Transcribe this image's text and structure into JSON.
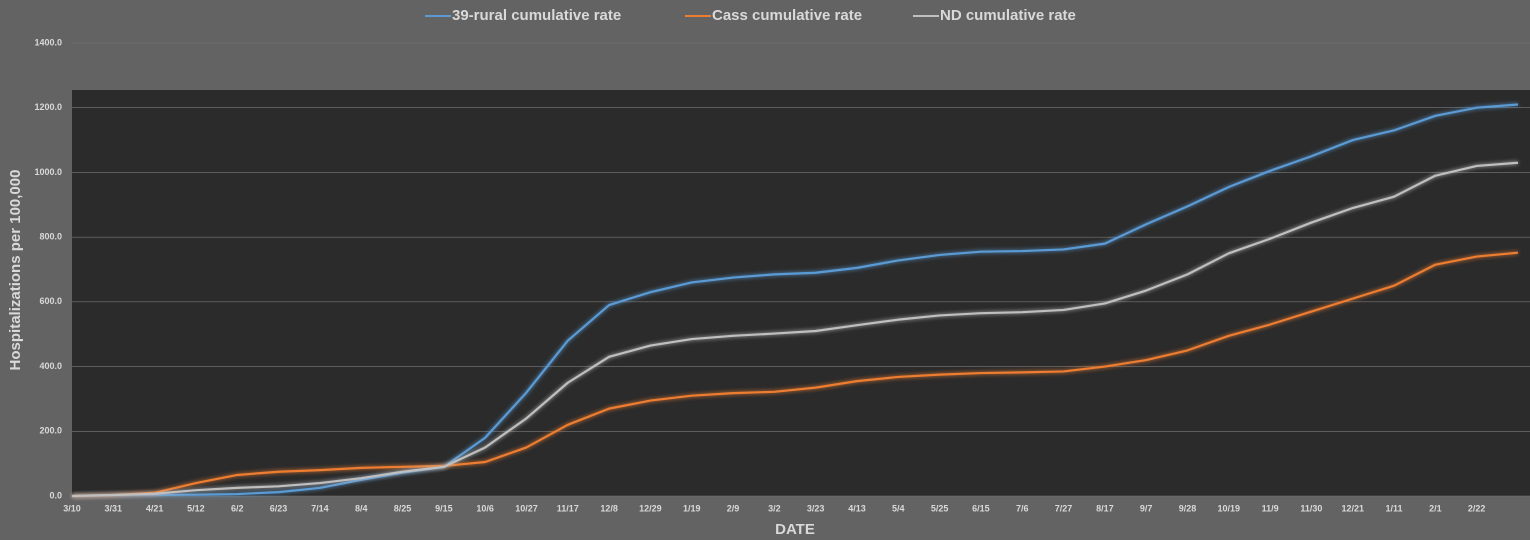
{
  "chart_data": {
    "type": "line",
    "xlabel": "DATE",
    "ylabel": "Hospitalizations per 100,000",
    "categories": [
      "3/10",
      "3/31",
      "4/21",
      "5/12",
      "6/2",
      "6/23",
      "7/14",
      "8/4",
      "8/25",
      "9/15",
      "10/6",
      "10/27",
      "11/17",
      "12/8",
      "12/29",
      "1/19",
      "2/9",
      "3/2",
      "3/23",
      "4/13",
      "5/4",
      "5/25",
      "6/15",
      "7/6",
      "7/27",
      "8/17",
      "9/7",
      "9/28",
      "10/19",
      "11/9",
      "11/30",
      "12/21",
      "1/11",
      "2/1",
      "2/22",
      null
    ],
    "series": [
      {
        "name": "39-rural cumulative rate",
        "color": "#5b9bd5",
        "values": [
          0,
          2,
          3,
          4,
          6,
          12,
          25,
          50,
          72,
          90,
          180,
          320,
          480,
          590,
          630,
          660,
          675,
          685,
          690,
          705,
          728,
          745,
          755,
          757,
          762,
          780,
          840,
          895,
          955,
          1005,
          1050,
          1100,
          1130,
          1175,
          1200,
          1210
        ]
      },
      {
        "name": "Cass cumulative rate",
        "color": "#ed7d31",
        "values": [
          0,
          3,
          10,
          40,
          65,
          75,
          80,
          87,
          90,
          93,
          105,
          150,
          220,
          270,
          295,
          310,
          318,
          322,
          335,
          355,
          368,
          375,
          380,
          382,
          385,
          400,
          420,
          450,
          495,
          530,
          570,
          610,
          650,
          715,
          740,
          752
        ]
      },
      {
        "name": "ND cumulative rate",
        "color": "#bfbfbf",
        "values": [
          0,
          3,
          7,
          18,
          25,
          30,
          40,
          55,
          75,
          90,
          150,
          240,
          350,
          430,
          465,
          485,
          495,
          502,
          510,
          528,
          545,
          558,
          565,
          568,
          575,
          595,
          635,
          685,
          750,
          795,
          845,
          890,
          925,
          990,
          1020,
          1030
        ]
      }
    ],
    "ylim": [
      0,
      1400
    ],
    "yticks": [
      {
        "value": 0,
        "label": "0.0"
      },
      {
        "value": 200,
        "label": "200.0"
      },
      {
        "value": 400,
        "label": "400.0"
      },
      {
        "value": 600,
        "label": "600.0"
      },
      {
        "value": 800,
        "label": "800.0"
      },
      {
        "value": 1000,
        "label": "1000.0"
      },
      {
        "value": 1200,
        "label": "1200.0"
      },
      {
        "value": 1400,
        "label": "1400.0"
      }
    ],
    "grid": true,
    "legend": "top"
  }
}
